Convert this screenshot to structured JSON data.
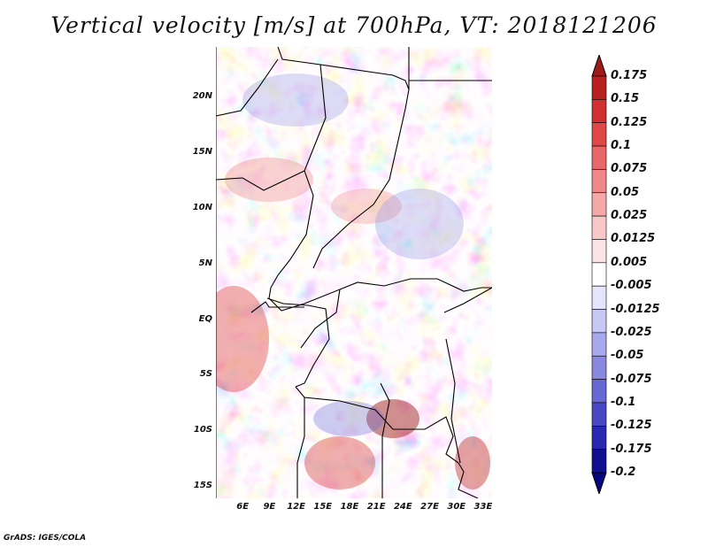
{
  "title": "Vertical velocity [m/s] at 700hPa, VT: 2018121206",
  "credit": "GrADS: IGES/COLA",
  "map": {
    "lon_range": [
      3,
      34
    ],
    "lat_range": [
      -16,
      24.5
    ],
    "y_ticks": [
      {
        "lat": 20,
        "label": "20N"
      },
      {
        "lat": 15,
        "label": "15N"
      },
      {
        "lat": 10,
        "label": "10N"
      },
      {
        "lat": 5,
        "label": "5N"
      },
      {
        "lat": 0,
        "label": "EQ"
      },
      {
        "lat": -5,
        "label": "5S"
      },
      {
        "lat": -10,
        "label": "10S"
      },
      {
        "lat": -15,
        "label": "15S"
      }
    ],
    "x_ticks": [
      {
        "lon": 6,
        "label": "6E"
      },
      {
        "lon": 9,
        "label": "9E"
      },
      {
        "lon": 12,
        "label": "12E"
      },
      {
        "lon": 15,
        "label": "15E"
      },
      {
        "lon": 18,
        "label": "18E"
      },
      {
        "lon": 21,
        "label": "21E"
      },
      {
        "lon": 24,
        "label": "24E"
      },
      {
        "lon": 27,
        "label": "27E"
      },
      {
        "lon": 30,
        "label": "30E"
      },
      {
        "lon": 33,
        "label": "33E"
      }
    ]
  },
  "colorbar": {
    "labels": [
      "0.175",
      "0.15",
      "0.125",
      "0.1",
      "0.075",
      "0.05",
      "0.025",
      "0.0125",
      "0.005",
      "-0.005",
      "-0.0125",
      "-0.025",
      "-0.05",
      "-0.075",
      "-0.1",
      "-0.125",
      "-0.175",
      "-0.2"
    ],
    "colors": [
      "#a01a1a",
      "#b82020",
      "#d03030",
      "#e04848",
      "#e86868",
      "#f08888",
      "#f4a8a8",
      "#f8c8c8",
      "#fce4e4",
      "#ffffff",
      "#e4e4fc",
      "#c8c8f4",
      "#a8a8ec",
      "#8888e0",
      "#6868d4",
      "#4848c4",
      "#2828b0",
      "#101090",
      "#060680"
    ],
    "top_arrow_color": "#a01a1a",
    "bottom_arrow_color": "#060680"
  }
}
